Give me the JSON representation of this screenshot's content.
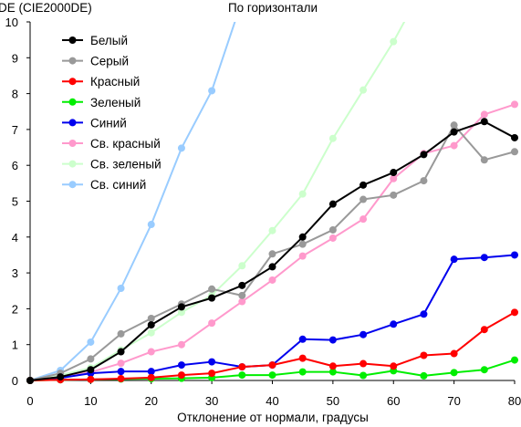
{
  "chart_data": {
    "type": "line",
    "title": "По горизонтали",
    "ylabel": "DE (CIE2000DE)",
    "xlabel": "Отклонение от нормали, градусы",
    "x": [
      0,
      5,
      10,
      15,
      20,
      25,
      30,
      35,
      40,
      45,
      50,
      55,
      60,
      65,
      70,
      75,
      80
    ],
    "xlim": [
      0,
      80
    ],
    "ylim": [
      0,
      10
    ],
    "xticks": [
      "0",
      "10",
      "20",
      "30",
      "40",
      "50",
      "60",
      "70",
      "80"
    ],
    "yticks": [
      "0",
      "1",
      "2",
      "3",
      "4",
      "5",
      "6",
      "7",
      "8",
      "9",
      "10"
    ],
    "legend_position": "top-left",
    "grid": false,
    "series": [
      {
        "name": "Белый",
        "color": "#000000",
        "values": [
          0,
          0.1,
          0.3,
          0.8,
          1.55,
          2.05,
          2.3,
          2.65,
          3.17,
          4.0,
          4.92,
          5.45,
          5.8,
          6.3,
          6.93,
          7.22,
          6.77
        ]
      },
      {
        "name": "Серый",
        "color": "#999999",
        "values": [
          0,
          0.2,
          0.6,
          1.3,
          1.73,
          2.13,
          2.55,
          2.37,
          3.53,
          3.8,
          4.2,
          5.05,
          5.17,
          5.57,
          7.12,
          6.15,
          6.38
        ]
      },
      {
        "name": "Красный",
        "color": "#ff0000",
        "values": [
          0,
          0.02,
          0.03,
          0.05,
          0.08,
          0.15,
          0.2,
          0.38,
          0.43,
          0.62,
          0.4,
          0.47,
          0.4,
          0.7,
          0.75,
          1.42,
          1.9
        ]
      },
      {
        "name": "Зеленый",
        "color": "#00ee00",
        "values": [
          0,
          0.02,
          0.03,
          0.04,
          0.05,
          0.06,
          0.08,
          0.15,
          0.15,
          0.24,
          0.24,
          0.14,
          0.27,
          0.13,
          0.22,
          0.3,
          0.57
        ]
      },
      {
        "name": "Синий",
        "color": "#0000ee",
        "values": [
          0,
          0.07,
          0.2,
          0.25,
          0.25,
          0.43,
          0.52,
          0.38,
          0.43,
          1.15,
          1.13,
          1.28,
          1.57,
          1.85,
          3.38,
          3.43,
          3.5
        ]
      },
      {
        "name": "Св. красный",
        "color": "#ff99cc",
        "values": [
          0,
          0.1,
          0.23,
          0.48,
          0.8,
          1.0,
          1.6,
          2.2,
          2.8,
          3.47,
          3.97,
          4.5,
          5.63,
          6.33,
          6.55,
          7.42,
          7.7
        ]
      },
      {
        "name": "Св. зеленый",
        "color": "#ccffcc",
        "values": [
          0,
          0.15,
          0.35,
          0.85,
          1.33,
          1.9,
          2.38,
          3.2,
          4.18,
          5.2,
          6.75,
          8.1,
          9.45,
          11.0,
          null,
          null,
          null
        ]
      },
      {
        "name": "Св. синий",
        "color": "#99ccff",
        "values": [
          0,
          0.28,
          1.07,
          2.57,
          4.35,
          6.48,
          8.08,
          10.6,
          null,
          null,
          null,
          null,
          null,
          null,
          null,
          null,
          null
        ]
      }
    ]
  }
}
